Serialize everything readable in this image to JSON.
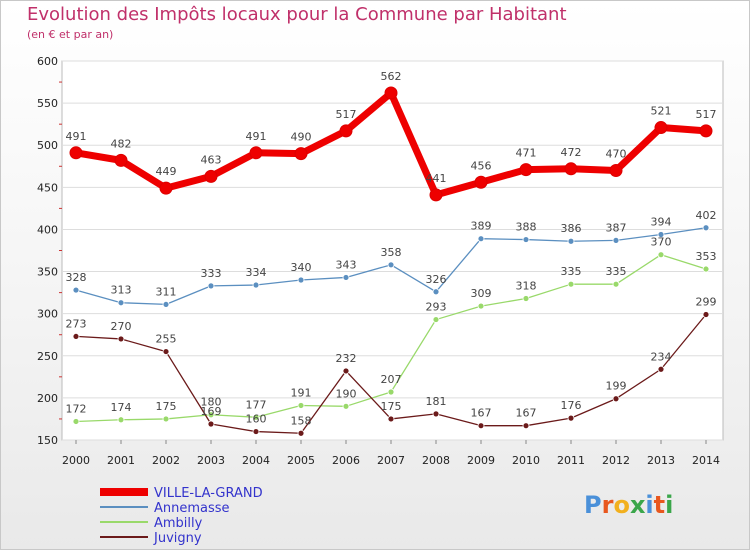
{
  "title": "Evolution des Impôts locaux pour la Commune par Habitant",
  "subtitle": "(en € et par an)",
  "logo": {
    "text": "Proxiti",
    "letter_colors": [
      "#4a90d9",
      "#e8571e",
      "#f2b01e",
      "#3aa64a",
      "#4a90d9",
      "#e8571e",
      "#3aa64a"
    ]
  },
  "chart_data": {
    "type": "line",
    "x": [
      2000,
      2001,
      2002,
      2003,
      2004,
      2005,
      2006,
      2007,
      2008,
      2009,
      2010,
      2011,
      2012,
      2013,
      2014
    ],
    "ylim": [
      150,
      600
    ],
    "yticks": [
      150,
      200,
      250,
      300,
      350,
      400,
      450,
      500,
      550,
      600
    ],
    "grid": "horizontal",
    "legend_position": "bottom-left",
    "series": [
      {
        "name": "VILLE-LA-GRAND",
        "color": "#ee0000",
        "legend_color": "#3333cc",
        "emphasis": true,
        "values": [
          491,
          482,
          449,
          463,
          491,
          490,
          517,
          562,
          441,
          456,
          471,
          472,
          470,
          521,
          517
        ],
        "labels": [
          "491",
          "482",
          "449",
          "463",
          "491",
          "490",
          "517",
          "562",
          "441",
          "456",
          "471",
          "472",
          "470",
          "521",
          "517"
        ]
      },
      {
        "name": "Annemasse",
        "color": "#5b8fc0",
        "legend_color": "#3333cc",
        "emphasis": false,
        "values": [
          328,
          313,
          311,
          333,
          334,
          340,
          343,
          358,
          326,
          389,
          388,
          386,
          387,
          394,
          402
        ],
        "labels": [
          "328",
          "313",
          "311",
          "333",
          "334",
          "340",
          "343",
          "358",
          "326",
          "389",
          "388",
          "386",
          "387",
          "394",
          "402"
        ]
      },
      {
        "name": "Ambilly",
        "color": "#99d96a",
        "legend_color": "#3333cc",
        "emphasis": false,
        "values": [
          172,
          174,
          175,
          180,
          177,
          191,
          190,
          207,
          293,
          309,
          318,
          335,
          335,
          370,
          353
        ],
        "labels": [
          "172",
          "174",
          "175",
          "180",
          "177",
          "191",
          "190",
          "207",
          "293",
          "309",
          "318",
          "335",
          "335",
          "370",
          "353"
        ]
      },
      {
        "name": "Juvigny",
        "color": "#6b1a1a",
        "legend_color": "#3333cc",
        "emphasis": false,
        "values": [
          273,
          270,
          255,
          169,
          160,
          158,
          232,
          175,
          181,
          167,
          167,
          176,
          199,
          234,
          299
        ],
        "labels": [
          "273",
          "270",
          "255",
          "169",
          "160",
          "158",
          "232",
          "175",
          "181",
          "167",
          "167",
          "176",
          "199",
          "234",
          "299"
        ]
      }
    ]
  }
}
